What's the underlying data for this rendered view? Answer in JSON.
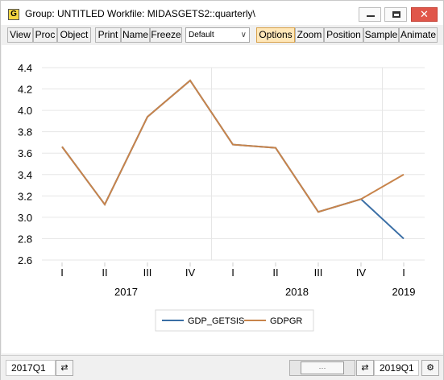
{
  "window": {
    "icon_letter": "G",
    "title": "Group: UNTITLED   Workfile: MIDASGETS2::quarterly\\",
    "minimize_glyph": "",
    "maximize_glyph": "",
    "close_glyph": "✕"
  },
  "toolbar": {
    "view": "View",
    "proc": "Proc",
    "object": "Object",
    "print": "Print",
    "name": "Name",
    "freeze": "Freeze",
    "template_select": "Default",
    "options": "Options",
    "zoom": "Zoom",
    "position": "Position",
    "sample": "Sample",
    "animate": "Animate"
  },
  "status": {
    "start": "2017Q1",
    "end": "2019Q1",
    "slider_label": "···",
    "arrows_icon": "⇄"
  },
  "colors": {
    "gdp_getsis": "#3a6ea5",
    "gdpgr": "#c8844b",
    "options_active": "#ffe7b8"
  },
  "chart_data": {
    "type": "line",
    "title": "",
    "xlabel": "",
    "ylabel": "",
    "categories": [
      "I",
      "II",
      "III",
      "IV",
      "I",
      "II",
      "III",
      "IV",
      "I"
    ],
    "years": [
      {
        "label": "2017",
        "start_index": 0,
        "end_index": 3
      },
      {
        "label": "2018",
        "start_index": 4,
        "end_index": 7
      },
      {
        "label": "2019",
        "start_index": 8,
        "end_index": 8
      }
    ],
    "ylim": [
      2.6,
      4.4
    ],
    "yticks": [
      "2.6",
      "2.8",
      "3.0",
      "3.2",
      "3.4",
      "3.6",
      "3.8",
      "4.0",
      "4.2",
      "4.4"
    ],
    "grid": true,
    "legend_position": "bottom-center",
    "series": [
      {
        "name": "GDP_GETSIS",
        "values": [
          3.66,
          3.12,
          3.94,
          4.28,
          3.68,
          3.65,
          3.05,
          3.17,
          2.8
        ]
      },
      {
        "name": "GDPGR",
        "values": [
          3.66,
          3.12,
          3.94,
          4.28,
          3.68,
          3.65,
          3.05,
          3.17,
          3.4
        ]
      }
    ]
  }
}
